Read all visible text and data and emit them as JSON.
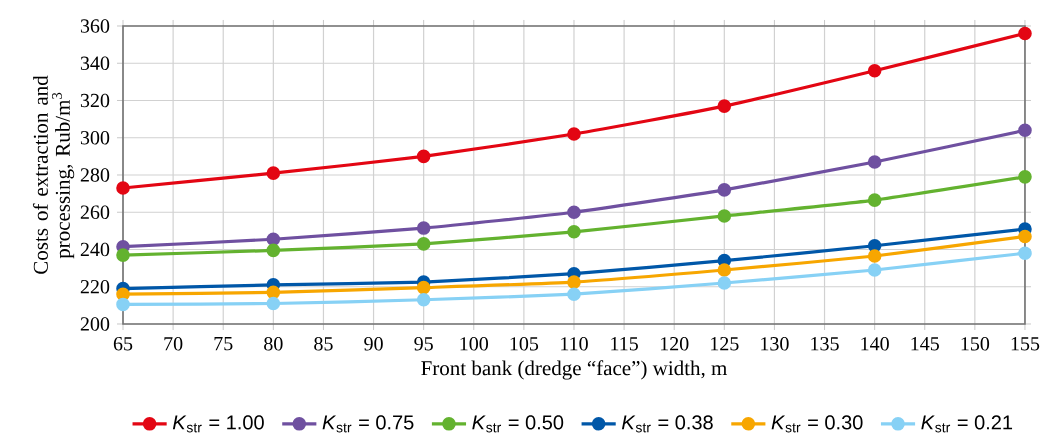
{
  "chart_data": {
    "type": "line",
    "xlabel": "Front bank (dredge “face”)  width, m",
    "ylabel": "Costs of extraction and processing, Rub/m$^{3}$",
    "x": [
      65,
      80,
      95,
      110,
      125,
      140,
      155
    ],
    "series": [
      {
        "name": "*K*$_{str}$ = 1.00",
        "color": "#e30613",
        "values": [
          273,
          281,
          290,
          302,
          317,
          336,
          356
        ]
      },
      {
        "name": "*K*$_{str}$ = 0.75",
        "color": "#6f50a0",
        "values": [
          241.5,
          245.5,
          251.5,
          260,
          272,
          287,
          304
        ]
      },
      {
        "name": "*K*$_{str}$ = 0.50",
        "color": "#63b22f",
        "values": [
          237,
          239.5,
          243,
          249.5,
          258,
          266.5,
          279
        ]
      },
      {
        "name": "*K*$_{str}$ = 0.38",
        "color": "#0057a8",
        "values": [
          219,
          221,
          222.5,
          227,
          234,
          242,
          251
        ]
      },
      {
        "name": "*K*$_{str}$ = 0.30",
        "color": "#f7a600",
        "values": [
          216,
          217,
          219.5,
          222.5,
          229,
          236.5,
          247
        ]
      },
      {
        "name": "*K*$_{str}$ = 0.21",
        "color": "#87d1f5",
        "values": [
          210.5,
          211,
          213,
          216,
          222,
          229,
          238
        ]
      }
    ],
    "xlim": [
      65,
      155
    ],
    "xticks": [
      65,
      70,
      75,
      80,
      85,
      90,
      95,
      100,
      105,
      110,
      115,
      120,
      125,
      130,
      135,
      140,
      145,
      150,
      155
    ],
    "ylim": [
      200,
      360
    ],
    "yticks": [
      200,
      220,
      240,
      260,
      280,
      300,
      320,
      340,
      360
    ],
    "grid": true,
    "legend": "bottom",
    "marker": "circle",
    "line_style": "solid"
  }
}
